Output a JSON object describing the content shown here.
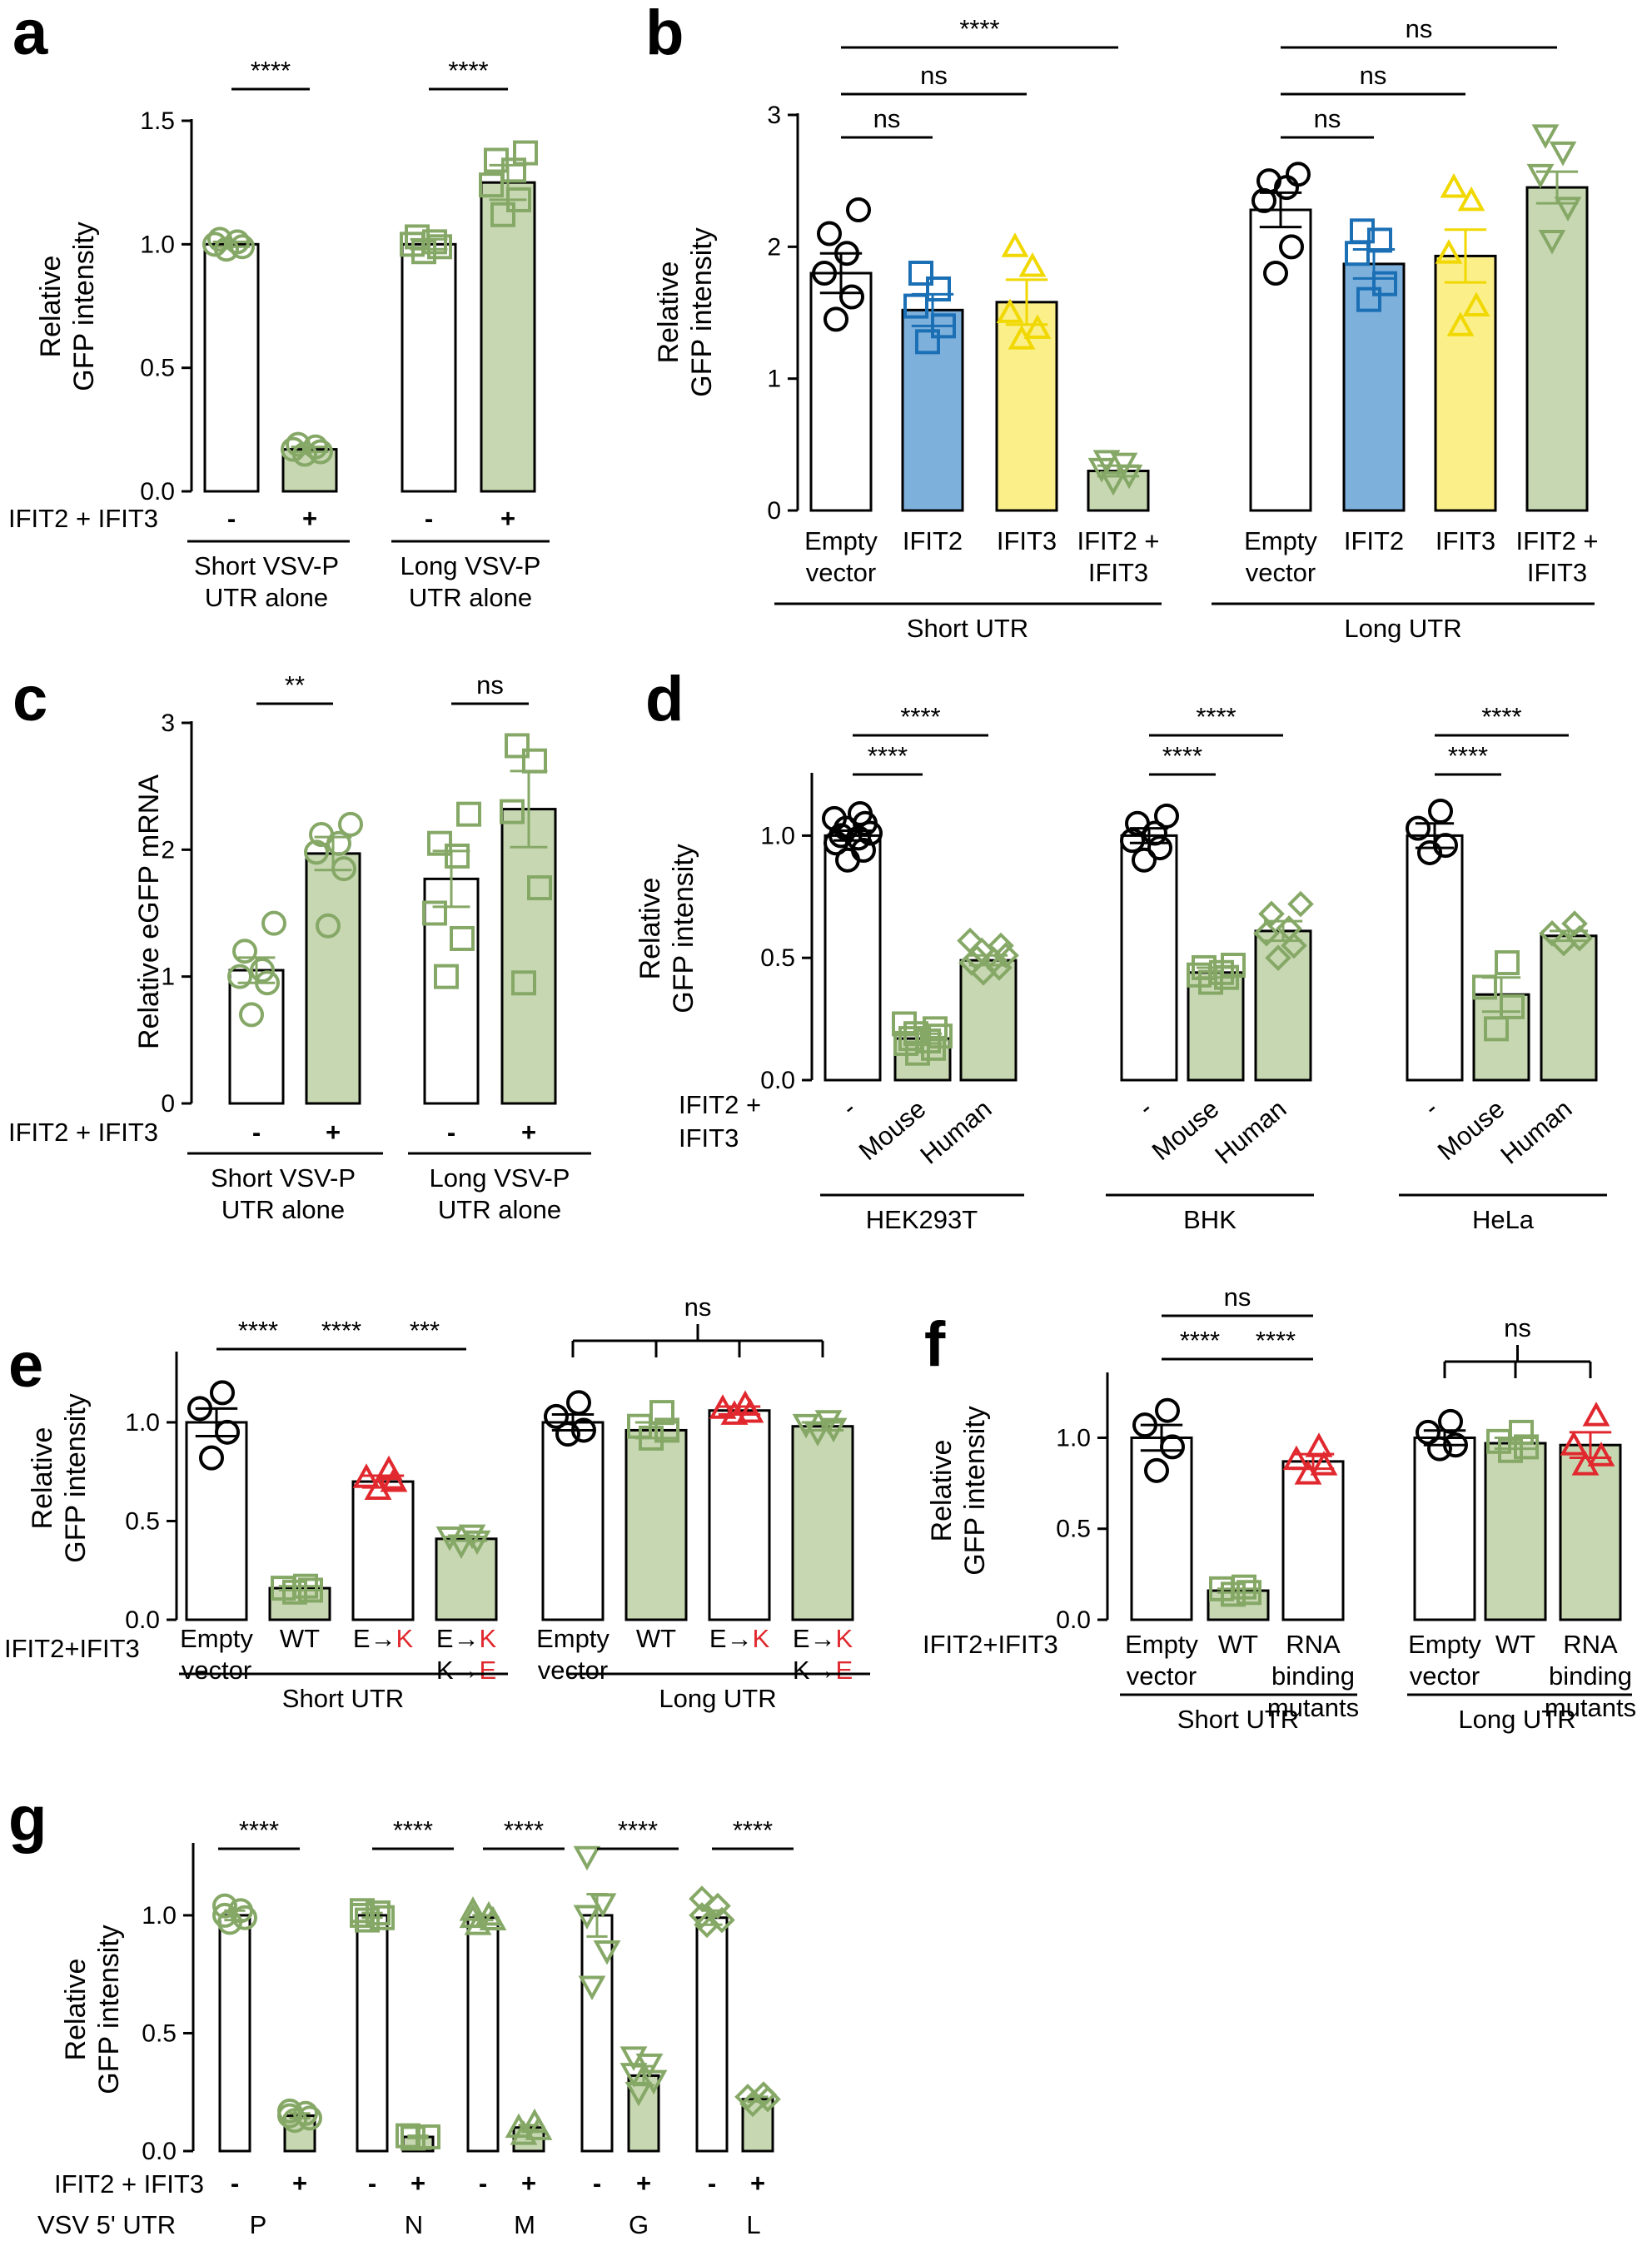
{
  "colors": {
    "white": "#ffffff",
    "green": "#c7d7b2",
    "green_marker": "#86a867",
    "blue": "#7eb0dc",
    "blue_marker": "#1a6fb5",
    "yellow": "#fbef8a",
    "yellow_marker": "#f0d800",
    "red": "#e0282e",
    "black": "#000000"
  },
  "chart_data": [
    {
      "panel": "a",
      "type": "bar",
      "ylabel": [
        "Relative",
        "GFP intensity"
      ],
      "ylim": [
        0,
        1.5
      ],
      "yticks": [
        "0.0",
        "0.5",
        "1.0",
        "1.5"
      ],
      "row_label": "IFIT2 + IFIT3",
      "categories": [
        "-",
        "+",
        "-",
        "+"
      ],
      "fills": [
        "white",
        "green",
        "white",
        "green"
      ],
      "markers": [
        "circle",
        "circle",
        "square",
        "square"
      ],
      "values": [
        1.0,
        0.17,
        1.0,
        1.25
      ],
      "errors": [
        0.01,
        0.01,
        0.02,
        0.07
      ],
      "points": [
        [
          0.98,
          0.99,
          1.0,
          1.01,
          1.02
        ],
        [
          0.15,
          0.16,
          0.17,
          0.18,
          0.19
        ],
        [
          0.97,
          0.99,
          1.0,
          1.01,
          1.03
        ],
        [
          1.12,
          1.18,
          1.24,
          1.3,
          1.34,
          1.37
        ]
      ],
      "groups": [
        {
          "label": [
            "Short VSV-P",
            "UTR alone"
          ]
        },
        {
          "label": [
            "Long VSV-P",
            "UTR alone"
          ]
        }
      ],
      "significance": [
        {
          "text": "****"
        },
        {
          "text": "****"
        }
      ]
    },
    {
      "panel": "b",
      "type": "bar",
      "ylabel": [
        "Relative",
        "GFP intensity"
      ],
      "ylim": [
        0,
        3
      ],
      "yticks": [
        "0",
        "1",
        "2",
        "3"
      ],
      "categories": [
        [
          "Empty",
          "vector"
        ],
        [
          "IFIT2"
        ],
        [
          "IFIT3"
        ],
        [
          "IFIT2 +",
          "IFIT3"
        ],
        [
          "Empty",
          "vector"
        ],
        [
          "IFIT2"
        ],
        [
          "IFIT3"
        ],
        [
          "IFIT2 +",
          "IFIT3"
        ]
      ],
      "fills": [
        "white",
        "blue",
        "yellow",
        "green",
        "white",
        "blue",
        "yellow",
        "green"
      ],
      "markers": [
        "circle",
        "square",
        "triangle",
        "tri-down",
        "circle",
        "square",
        "triangle",
        "tri-down"
      ],
      "values": [
        1.8,
        1.52,
        1.58,
        0.3,
        2.28,
        1.87,
        1.93,
        2.45
      ],
      "errors": [
        0.15,
        0.12,
        0.17,
        0.04,
        0.13,
        0.11,
        0.2,
        0.12
      ],
      "points": [
        [
          1.45,
          1.62,
          1.8,
          1.95,
          2.1,
          2.28
        ],
        [
          1.28,
          1.4,
          1.55,
          1.68,
          1.8
        ],
        [
          1.3,
          1.38,
          1.5,
          1.85,
          2.0
        ],
        [
          0.22,
          0.27,
          0.32,
          0.36,
          0.38
        ],
        [
          1.8,
          2.0,
          2.35,
          2.45,
          2.5,
          2.55
        ],
        [
          1.6,
          1.72,
          1.95,
          2.05,
          2.12
        ],
        [
          1.4,
          1.55,
          1.95,
          2.35,
          2.45
        ],
        [
          2.05,
          2.3,
          2.55,
          2.72,
          2.85
        ]
      ],
      "groups": [
        {
          "label": [
            "Short UTR"
          ]
        },
        {
          "label": [
            "Long UTR"
          ]
        }
      ],
      "significance": [
        {
          "text": "****"
        },
        {
          "text": "ns"
        },
        {
          "text": "ns"
        },
        {
          "text": "ns"
        },
        {
          "text": "ns"
        },
        {
          "text": "ns"
        }
      ]
    },
    {
      "panel": "c",
      "type": "bar",
      "ylabel": [
        "Relative eGFP mRNA"
      ],
      "ylim": [
        0,
        3
      ],
      "yticks": [
        "0",
        "1",
        "2",
        "3"
      ],
      "row_label": "IFIT2 + IFIT3",
      "categories": [
        "-",
        "+",
        "-",
        "+"
      ],
      "fills": [
        "white",
        "green",
        "white",
        "green"
      ],
      "markers": [
        "circle",
        "circle",
        "square",
        "square"
      ],
      "values": [
        1.05,
        1.97,
        1.77,
        2.32
      ],
      "errors": [
        0.1,
        0.13,
        0.22,
        0.3
      ],
      "points": [
        [
          0.7,
          0.95,
          1.0,
          1.05,
          1.2,
          1.42
        ],
        [
          1.4,
          1.85,
          1.98,
          2.05,
          2.12,
          2.2
        ],
        [
          1.0,
          1.3,
          1.5,
          1.95,
          2.05,
          2.28
        ],
        [
          0.95,
          1.7,
          2.3,
          2.7,
          2.82
        ]
      ],
      "groups": [
        {
          "label": [
            "Short VSV-P",
            "UTR alone"
          ]
        },
        {
          "label": [
            "Long VSV-P",
            "UTR alone"
          ]
        }
      ],
      "significance": [
        {
          "text": "**"
        },
        {
          "text": "ns"
        }
      ]
    },
    {
      "panel": "d",
      "type": "bar",
      "ylabel": [
        "Relative",
        "GFP intensity"
      ],
      "ylim": [
        0,
        1.25
      ],
      "yticks": [
        "0.0",
        "0.5",
        "1.0"
      ],
      "row_label": [
        "IFIT2 +",
        "IFIT3"
      ],
      "categories": [
        "-",
        "Mouse",
        "Human",
        "-",
        "Mouse",
        "Human",
        "-",
        "Mouse",
        "Human"
      ],
      "fills": [
        "white",
        "green",
        "green",
        "white",
        "green",
        "green",
        "white",
        "green",
        "green"
      ],
      "markers": [
        "circle",
        "square",
        "diamond",
        "circle",
        "square",
        "diamond",
        "circle",
        "square",
        "diamond"
      ],
      "values": [
        1.0,
        0.17,
        0.49,
        1.0,
        0.44,
        0.61,
        1.0,
        0.35,
        0.59
      ],
      "errors": [
        0.02,
        0.02,
        0.02,
        0.03,
        0.02,
        0.04,
        0.05,
        0.07,
        0.02
      ],
      "points": [
        [
          0.9,
          0.94,
          0.97,
          0.99,
          1.0,
          1.01,
          1.03,
          1.05,
          1.07,
          1.09
        ],
        [
          0.11,
          0.13,
          0.15,
          0.16,
          0.17,
          0.18,
          0.19,
          0.21,
          0.23
        ],
        [
          0.44,
          0.46,
          0.48,
          0.49,
          0.5,
          0.51,
          0.53,
          0.55,
          0.57
        ],
        [
          0.9,
          0.95,
          0.98,
          1.01,
          1.05,
          1.08
        ],
        [
          0.4,
          0.42,
          0.43,
          0.44,
          0.46,
          0.47
        ],
        [
          0.5,
          0.55,
          0.6,
          0.62,
          0.68,
          0.72
        ],
        [
          0.93,
          0.96,
          1.03,
          1.1
        ],
        [
          0.21,
          0.3,
          0.38,
          0.48
        ],
        [
          0.56,
          0.58,
          0.6,
          0.64
        ]
      ],
      "groups": [
        {
          "label": [
            "HEK293T"
          ]
        },
        {
          "label": [
            "BHK"
          ]
        },
        {
          "label": [
            "HeLa"
          ]
        }
      ],
      "significance": [
        {
          "text": "****"
        },
        {
          "text": "****"
        },
        {
          "text": "****"
        },
        {
          "text": "****"
        },
        {
          "text": "****"
        },
        {
          "text": "****"
        }
      ]
    },
    {
      "panel": "e",
      "type": "bar",
      "ylabel": [
        "Relative",
        "GFP intensity"
      ],
      "ylim": [
        0,
        1.35
      ],
      "yticks": [
        "0.0",
        "0.5",
        "1.0"
      ],
      "row_label": "IFIT2+IFIT3",
      "categories": [
        [
          "Empty",
          "vector"
        ],
        [
          "WT"
        ],
        [
          "E→K"
        ],
        [
          "E→K",
          "K→E"
        ],
        [
          "Empty",
          "vector"
        ],
        [
          "WT"
        ],
        [
          "E→K"
        ],
        [
          "E→K",
          "K→E"
        ]
      ],
      "fills": [
        "white",
        "green",
        "white",
        "green",
        "white",
        "green",
        "white",
        "green"
      ],
      "markers": [
        "circle",
        "square",
        "tri-red",
        "tri-down",
        "circle",
        "square",
        "tri-red",
        "tri-down"
      ],
      "values": [
        1.0,
        0.16,
        0.7,
        0.41,
        1.0,
        0.96,
        1.06,
        0.98
      ],
      "errors": [
        0.07,
        0.01,
        0.03,
        0.01,
        0.04,
        0.04,
        0.02,
        0.02
      ],
      "points": [
        [
          0.82,
          0.95,
          1.07,
          1.15
        ],
        [
          0.14,
          0.15,
          0.16,
          0.17
        ],
        [
          0.66,
          0.7,
          0.72,
          0.76
        ],
        [
          0.38,
          0.4,
          0.42,
          0.43
        ],
        [
          0.94,
          0.96,
          1.03,
          1.1
        ],
        [
          0.92,
          0.96,
          0.98,
          1.05
        ],
        [
          1.04,
          1.05,
          1.07,
          1.09
        ],
        [
          0.95,
          0.97,
          0.99,
          1.01
        ]
      ],
      "groups": [
        {
          "label": [
            "Short UTR"
          ]
        },
        {
          "label": [
            "Long UTR"
          ]
        }
      ],
      "significance": [
        {
          "text": "****"
        },
        {
          "text": "****"
        },
        {
          "text": "***"
        },
        {
          "text": "ns"
        }
      ]
    },
    {
      "panel": "f",
      "type": "bar",
      "ylabel": [
        "Relative",
        "GFP intensity"
      ],
      "ylim": [
        0,
        1.35
      ],
      "yticks": [
        "0.0",
        "0.5",
        "1.0"
      ],
      "row_label": "IFIT2+IFIT3",
      "categories": [
        [
          "Empty",
          "vector"
        ],
        [
          "WT"
        ],
        [
          "RNA",
          "binding",
          "mutants"
        ],
        [
          "Empty",
          "vector"
        ],
        [
          "WT"
        ],
        [
          "RNA",
          "binding",
          "mutants"
        ]
      ],
      "fills": [
        "white",
        "green",
        "white",
        "white",
        "green",
        "green"
      ],
      "markers": [
        "circle",
        "square",
        "tri-red",
        "circle",
        "square",
        "tri-red"
      ],
      "values": [
        1.0,
        0.16,
        0.87,
        1.0,
        0.97,
        0.96
      ],
      "errors": [
        0.07,
        0.01,
        0.04,
        0.04,
        0.03,
        0.07
      ],
      "points": [
        [
          0.82,
          0.95,
          1.07,
          1.15
        ],
        [
          0.14,
          0.15,
          0.17,
          0.18
        ],
        [
          0.8,
          0.85,
          0.88,
          0.95
        ],
        [
          0.94,
          0.96,
          1.03,
          1.09
        ],
        [
          0.93,
          0.95,
          0.98,
          1.03
        ],
        [
          0.85,
          0.9,
          0.96,
          1.12
        ]
      ],
      "groups": [
        {
          "label": [
            "Short UTR"
          ]
        },
        {
          "label": [
            "Long UTR"
          ]
        }
      ],
      "significance": [
        {
          "text": "ns"
        },
        {
          "text": "****"
        },
        {
          "text": "****"
        },
        {
          "text": "ns"
        }
      ]
    },
    {
      "panel": "g",
      "type": "bar",
      "ylabel": [
        "Relative",
        "GFP intensity"
      ],
      "ylim": [
        0,
        1.3
      ],
      "yticks": [
        "0.0",
        "0.5",
        "1.0"
      ],
      "row_label": "IFIT2 + IFIT3",
      "row2_label": "VSV 5' UTR",
      "categories": [
        "-",
        "+",
        "-",
        "+",
        "-",
        "+",
        "-",
        "+",
        "-",
        "+"
      ],
      "fills": [
        "white",
        "green",
        "white",
        "green",
        "white",
        "green",
        "white",
        "green",
        "white",
        "green"
      ],
      "markers": [
        "circle",
        "circle",
        "square",
        "square",
        "triangle",
        "triangle",
        "tri-down",
        "tri-down",
        "diamond",
        "diamond"
      ],
      "values": [
        1.0,
        0.15,
        1.0,
        0.06,
        0.99,
        0.1,
        1.0,
        0.32,
        0.99,
        0.22
      ],
      "errors": [
        0.02,
        0.01,
        0.01,
        0.005,
        0.01,
        0.01,
        0.09,
        0.04,
        0.03,
        0.01
      ],
      "points": [
        [
          0.97,
          0.99,
          1.0,
          1.02,
          1.04
        ],
        [
          0.13,
          0.14,
          0.15,
          0.16,
          0.17
        ],
        [
          0.98,
          0.99,
          1.0,
          1.01,
          1.02
        ],
        [
          0.055,
          0.06,
          0.065
        ],
        [
          0.96,
          0.98,
          0.99,
          1.0,
          1.02
        ],
        [
          0.07,
          0.09,
          0.1,
          0.12
        ],
        [
          0.7,
          0.85,
          1.0,
          1.05,
          1.25
        ],
        [
          0.25,
          0.3,
          0.33,
          0.37,
          0.4
        ],
        [
          0.96,
          0.98,
          1.0,
          1.04,
          1.07
        ],
        [
          0.2,
          0.22,
          0.23,
          0.24
        ]
      ],
      "groups": [
        {
          "label": [
            "P"
          ]
        },
        {
          "label": [
            "N"
          ]
        },
        {
          "label": [
            "M"
          ]
        },
        {
          "label": [
            "G"
          ]
        },
        {
          "label": [
            "L"
          ]
        }
      ],
      "significance": [
        {
          "text": "****"
        },
        {
          "text": "****"
        },
        {
          "text": "****"
        },
        {
          "text": "****"
        },
        {
          "text": "****"
        }
      ]
    }
  ]
}
